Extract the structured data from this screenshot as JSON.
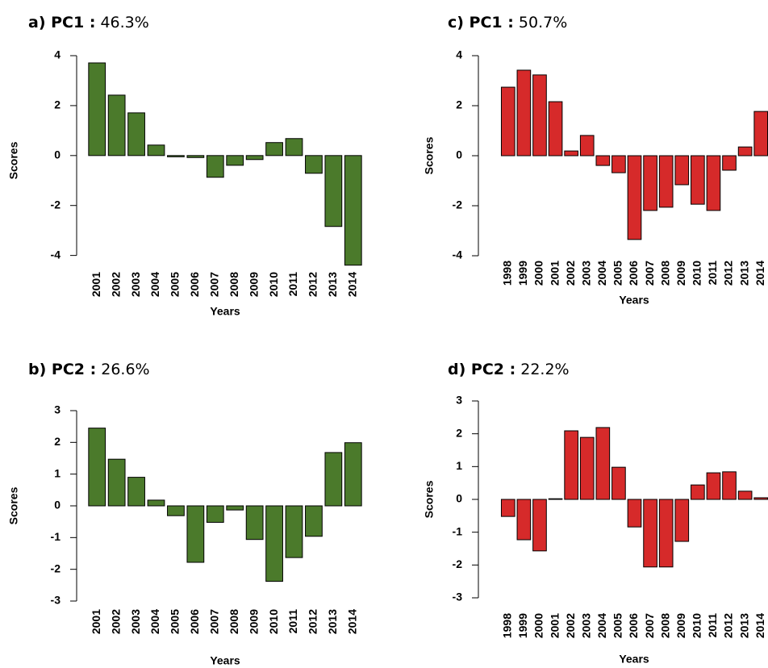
{
  "chart_data": [
    {
      "type": "bar",
      "title_bold": "a) PC1 :",
      "title": "46.3%",
      "xlabel": "Years",
      "ylabel": "Scores",
      "color": "#4b7a2b",
      "categories": [
        "2001",
        "2002",
        "2003",
        "2004",
        "2005",
        "2006",
        "2007",
        "2008",
        "2009",
        "2010",
        "2011",
        "2012",
        "2013",
        "2014"
      ],
      "values": [
        3.71,
        2.42,
        1.71,
        0.42,
        -0.05,
        -0.08,
        -0.87,
        -0.39,
        -0.16,
        0.52,
        0.68,
        -0.71,
        -2.84,
        -4.39
      ],
      "ylim": [
        -4.4,
        4
      ],
      "yticks": [
        -4,
        -2,
        0,
        2,
        4
      ]
    },
    {
      "type": "bar",
      "title_bold": "b) PC2 :",
      "title": "26.6%",
      "xlabel": "Years",
      "ylabel": "Scores",
      "color": "#4b7a2b",
      "categories": [
        "2001",
        "2002",
        "2003",
        "2004",
        "2005",
        "2006",
        "2007",
        "2008",
        "2009",
        "2010",
        "2011",
        "2012",
        "2013",
        "2014"
      ],
      "values": [
        2.45,
        1.47,
        0.9,
        0.18,
        -0.31,
        -1.78,
        -0.52,
        -0.13,
        -1.06,
        -2.38,
        -1.63,
        -0.96,
        1.68,
        1.99
      ],
      "ylim": [
        -3,
        3
      ],
      "yticks": [
        -3,
        -2,
        -1,
        0,
        1,
        2,
        3
      ]
    },
    {
      "type": "bar",
      "title_bold": "c) PC1 :",
      "title": "50.7%",
      "xlabel": "Years",
      "ylabel": "Scores",
      "color": "#d62a2a",
      "categories": [
        "1998",
        "1999",
        "2000",
        "2001",
        "2002",
        "2003",
        "2004",
        "2005",
        "2006",
        "2007",
        "2008",
        "2009",
        "2010",
        "2011",
        "2012",
        "2013",
        "2014"
      ],
      "values": [
        2.74,
        3.42,
        3.23,
        2.16,
        0.19,
        0.81,
        -0.39,
        -0.68,
        -3.35,
        -2.19,
        -2.06,
        -1.16,
        -1.94,
        -2.19,
        -0.58,
        0.35,
        1.77
      ],
      "ylim": [
        -4,
        4
      ],
      "yticks": [
        -4,
        -2,
        0,
        2,
        4
      ]
    },
    {
      "type": "bar",
      "title_bold": "d) PC2 :",
      "title": "22.2%",
      "xlabel": "Years",
      "ylabel": "Scores",
      "color": "#d62a2a",
      "categories": [
        "1998",
        "1999",
        "2000",
        "2001",
        "2002",
        "2003",
        "2004",
        "2005",
        "2006",
        "2007",
        "2008",
        "2009",
        "2010",
        "2011",
        "2012",
        "2013",
        "2014"
      ],
      "values": [
        -0.52,
        -1.23,
        -1.57,
        0.02,
        2.09,
        1.89,
        2.19,
        0.98,
        -0.84,
        -2.06,
        -2.06,
        -1.28,
        0.44,
        0.81,
        0.84,
        0.25,
        0.05
      ],
      "ylim": [
        -3,
        3
      ],
      "yticks": [
        -3,
        -2,
        -1,
        0,
        1,
        2,
        3
      ]
    }
  ]
}
